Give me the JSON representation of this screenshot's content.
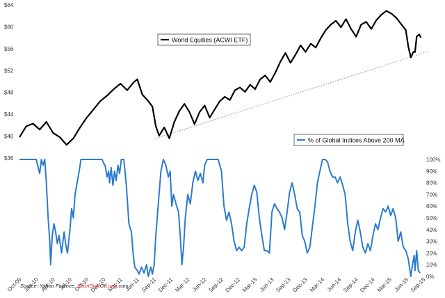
{
  "chart_data": {
    "type": "line",
    "x_labels": [
      "Oct-09",
      "Jan-10",
      "Apr-10",
      "Jul-10",
      "Oct-10",
      "Dec-10",
      "Mar-11",
      "Jun-11",
      "Sep-11",
      "Dec-11",
      "Mar-12",
      "Jun-12",
      "Sep-12",
      "Dec-12",
      "Mar-13",
      "Jun-13",
      "Sep-13",
      "Dec-13",
      "Mar-14",
      "Jun-14",
      "Sep-14",
      "Dec-14",
      "Mar-15",
      "Jun-15",
      "Sep-15"
    ],
    "left_axis": {
      "ticks": [
        "$36",
        "$40",
        "$44",
        "$48",
        "$52",
        "$56",
        "$60",
        "$64"
      ],
      "ylim": [
        36,
        64
      ]
    },
    "right_axis": {
      "ticks": [
        "0%",
        "10%",
        "20%",
        "30%",
        "40%",
        "50%",
        "60%",
        "70%",
        "80%",
        "90%",
        "100%"
      ],
      "ylim": [
        0,
        100
      ]
    },
    "series": [
      {
        "name": "World Equities (ACWI ETF)",
        "axis": "left",
        "color": "#000000",
        "points": [
          [
            0,
            39.8
          ],
          [
            0.4,
            41.8
          ],
          [
            0.8,
            42.3
          ],
          [
            1.2,
            41.2
          ],
          [
            1.6,
            42.6
          ],
          [
            2,
            40.6
          ],
          [
            2.4,
            39.8
          ],
          [
            2.8,
            38.4
          ],
          [
            3.2,
            39.6
          ],
          [
            3.6,
            41.6
          ],
          [
            4,
            43.4
          ],
          [
            4.4,
            44.9
          ],
          [
            4.8,
            46.4
          ],
          [
            5.2,
            47.4
          ],
          [
            5.6,
            48.6
          ],
          [
            6,
            49.6
          ],
          [
            6.4,
            48.4
          ],
          [
            6.8,
            49.9
          ],
          [
            7,
            50.4
          ],
          [
            7.3,
            47.6
          ],
          [
            7.6,
            46.6
          ],
          [
            7.9,
            45.4
          ],
          [
            8.1,
            41.8
          ],
          [
            8.3,
            40.1
          ],
          [
            8.6,
            41.6
          ],
          [
            8.9,
            39.6
          ],
          [
            9.2,
            42.6
          ],
          [
            9.5,
            44.6
          ],
          [
            9.8,
            45.9
          ],
          [
            10.1,
            44.4
          ],
          [
            10.4,
            42.2
          ],
          [
            10.7,
            44.4
          ],
          [
            11,
            45.6
          ],
          [
            11.3,
            43.4
          ],
          [
            11.6,
            44.9
          ],
          [
            11.9,
            46.4
          ],
          [
            12.2,
            47.2
          ],
          [
            12.5,
            46.6
          ],
          [
            12.8,
            48.4
          ],
          [
            13.1,
            48.9
          ],
          [
            13.4,
            48.1
          ],
          [
            13.7,
            49.4
          ],
          [
            14,
            48.6
          ],
          [
            14.3,
            50.4
          ],
          [
            14.6,
            51.1
          ],
          [
            14.9,
            49.9
          ],
          [
            15.2,
            51.6
          ],
          [
            15.5,
            53.6
          ],
          [
            15.8,
            55.2
          ],
          [
            16.1,
            53.4
          ],
          [
            16.4,
            54.9
          ],
          [
            16.7,
            56.6
          ],
          [
            17,
            55.4
          ],
          [
            17.3,
            56.9
          ],
          [
            17.6,
            56.2
          ],
          [
            17.9,
            57.9
          ],
          [
            18.2,
            59.4
          ],
          [
            18.5,
            60.4
          ],
          [
            18.8,
            61.1
          ],
          [
            19.1,
            59.9
          ],
          [
            19.4,
            61.4
          ],
          [
            19.7,
            59.6
          ],
          [
            20,
            58.2
          ],
          [
            20.3,
            60.4
          ],
          [
            20.6,
            60.9
          ],
          [
            20.9,
            59.6
          ],
          [
            21.2,
            61.2
          ],
          [
            21.5,
            62.2
          ],
          [
            21.8,
            62.9
          ],
          [
            22.1,
            62.4
          ],
          [
            22.4,
            61.6
          ],
          [
            22.7,
            60.4
          ],
          [
            22.95,
            59.4
          ],
          [
            23.1,
            56.4
          ],
          [
            23.25,
            54.4
          ],
          [
            23.4,
            55.4
          ],
          [
            23.5,
            55.4
          ],
          [
            23.6,
            58.2
          ],
          [
            23.75,
            58.6
          ],
          [
            23.85,
            58.0
          ]
        ]
      },
      {
        "name": "% of Global Indices Above 200 MA",
        "axis": "right",
        "color": "#2b7bd0",
        "points": [
          [
            0,
            100
          ],
          [
            0.5,
            100
          ],
          [
            1.0,
            100
          ],
          [
            1.2,
            88
          ],
          [
            1.3,
            100
          ],
          [
            1.4,
            95
          ],
          [
            1.5,
            100
          ],
          [
            1.6,
            80
          ],
          [
            1.7,
            50
          ],
          [
            1.8,
            30
          ],
          [
            1.85,
            10
          ],
          [
            1.95,
            35
          ],
          [
            2.05,
            45
          ],
          [
            2.15,
            38
          ],
          [
            2.25,
            28
          ],
          [
            2.35,
            35
          ],
          [
            2.5,
            20
          ],
          [
            2.65,
            38
          ],
          [
            2.75,
            27
          ],
          [
            2.85,
            20
          ],
          [
            3.0,
            40
          ],
          [
            3.1,
            58
          ],
          [
            3.2,
            50
          ],
          [
            3.3,
            70
          ],
          [
            3.45,
            82
          ],
          [
            3.55,
            90
          ],
          [
            3.65,
            100
          ],
          [
            4.0,
            100
          ],
          [
            4.4,
            100
          ],
          [
            4.6,
            100
          ],
          [
            4.9,
            100
          ],
          [
            5.1,
            94
          ],
          [
            5.2,
            85
          ],
          [
            5.3,
            90
          ],
          [
            5.35,
            80
          ],
          [
            5.45,
            93
          ],
          [
            5.55,
            78
          ],
          [
            5.65,
            90
          ],
          [
            5.75,
            82
          ],
          [
            5.85,
            95
          ],
          [
            5.95,
            88
          ],
          [
            6.05,
            100
          ],
          [
            6.2,
            100
          ],
          [
            6.35,
            78
          ],
          [
            6.5,
            45
          ],
          [
            6.65,
            38
          ],
          [
            6.75,
            20
          ],
          [
            6.85,
            8
          ],
          [
            7.0,
            5
          ],
          [
            7.1,
            2
          ],
          [
            7.25,
            8
          ],
          [
            7.4,
            3
          ],
          [
            7.55,
            10
          ],
          [
            7.65,
            0
          ],
          [
            7.8,
            8
          ],
          [
            7.9,
            2
          ],
          [
            8.0,
            10
          ],
          [
            8.1,
            35
          ],
          [
            8.25,
            62
          ],
          [
            8.4,
            90
          ],
          [
            8.55,
            100
          ],
          [
            8.7,
            95
          ],
          [
            8.85,
            85
          ],
          [
            8.95,
            90
          ],
          [
            9.05,
            60
          ],
          [
            9.15,
            70
          ],
          [
            9.3,
            62
          ],
          [
            9.45,
            55
          ],
          [
            9.55,
            35
          ],
          [
            9.65,
            10
          ],
          [
            9.75,
            25
          ],
          [
            9.85,
            50
          ],
          [
            10.0,
            70
          ],
          [
            10.15,
            62
          ],
          [
            10.3,
            80
          ],
          [
            10.45,
            90
          ],
          [
            10.6,
            82
          ],
          [
            10.75,
            88
          ],
          [
            10.9,
            80
          ],
          [
            11.0,
            95
          ],
          [
            11.15,
            100
          ],
          [
            11.3,
            100
          ],
          [
            11.6,
            100
          ],
          [
            11.8,
            100
          ],
          [
            12.0,
            90
          ],
          [
            12.15,
            60
          ],
          [
            12.3,
            48
          ],
          [
            12.45,
            55
          ],
          [
            12.6,
            45
          ],
          [
            12.75,
            30
          ],
          [
            12.9,
            22
          ],
          [
            13.05,
            25
          ],
          [
            13.2,
            22
          ],
          [
            13.35,
            25
          ],
          [
            13.5,
            45
          ],
          [
            13.65,
            58
          ],
          [
            13.8,
            70
          ],
          [
            13.95,
            78
          ],
          [
            14.1,
            72
          ],
          [
            14.25,
            50
          ],
          [
            14.4,
            35
          ],
          [
            14.55,
            22
          ],
          [
            14.7,
            22
          ],
          [
            14.85,
            20
          ],
          [
            15.0,
            55
          ],
          [
            15.15,
            62
          ],
          [
            15.3,
            58
          ],
          [
            15.45,
            55
          ],
          [
            15.6,
            50
          ],
          [
            15.75,
            40
          ],
          [
            15.9,
            55
          ],
          [
            16.05,
            72
          ],
          [
            16.2,
            80
          ],
          [
            16.35,
            70
          ],
          [
            16.5,
            58
          ],
          [
            16.65,
            55
          ],
          [
            16.8,
            35
          ],
          [
            16.95,
            30
          ],
          [
            17.1,
            20
          ],
          [
            17.25,
            25
          ],
          [
            17.4,
            42
          ],
          [
            17.55,
            60
          ],
          [
            17.7,
            80
          ],
          [
            17.85,
            90
          ],
          [
            18.0,
            100
          ],
          [
            18.15,
            100
          ],
          [
            18.3,
            98
          ],
          [
            18.45,
            90
          ],
          [
            18.6,
            85
          ],
          [
            18.75,
            85
          ],
          [
            18.9,
            80
          ],
          [
            19.05,
            85
          ],
          [
            19.2,
            78
          ],
          [
            19.35,
            70
          ],
          [
            19.5,
            45
          ],
          [
            19.65,
            30
          ],
          [
            19.8,
            22
          ],
          [
            19.95,
            38
          ],
          [
            20.1,
            48
          ],
          [
            20.25,
            38
          ],
          [
            20.4,
            25
          ],
          [
            20.55,
            20
          ],
          [
            20.7,
            28
          ],
          [
            20.85,
            22
          ],
          [
            21.0,
            35
          ],
          [
            21.15,
            45
          ],
          [
            21.3,
            40
          ],
          [
            21.45,
            50
          ],
          [
            21.6,
            58
          ],
          [
            21.75,
            55
          ],
          [
            21.9,
            60
          ],
          [
            22.05,
            52
          ],
          [
            22.2,
            58
          ],
          [
            22.35,
            50
          ],
          [
            22.5,
            30
          ],
          [
            22.65,
            38
          ],
          [
            22.8,
            25
          ],
          [
            22.95,
            22
          ],
          [
            23.1,
            15
          ],
          [
            23.25,
            0
          ],
          [
            23.35,
            10
          ],
          [
            23.45,
            18
          ],
          [
            23.5,
            5
          ],
          [
            23.6,
            22
          ],
          [
            23.7,
            5
          ],
          [
            23.8,
            3
          ]
        ]
      }
    ],
    "trendline": {
      "from": [
        8.0,
        39.5
      ],
      "to": [
        24.3,
        55.5
      ]
    },
    "legend_labels": {
      "equities": "World Equities (ACWI ETF)",
      "breadth": "% of Global Indices Above 200 MA"
    },
    "source": {
      "prefix": "Source: Yahoo Finance, ",
      "site_a": "ShortSide",
      "site_b": "Of",
      "site_c": "Long",
      "site_d": ".com"
    },
    "colors": {
      "equities": "#000000",
      "breadth": "#2b7bd0",
      "source_red": "#e03020",
      "trend": "#888888"
    }
  }
}
